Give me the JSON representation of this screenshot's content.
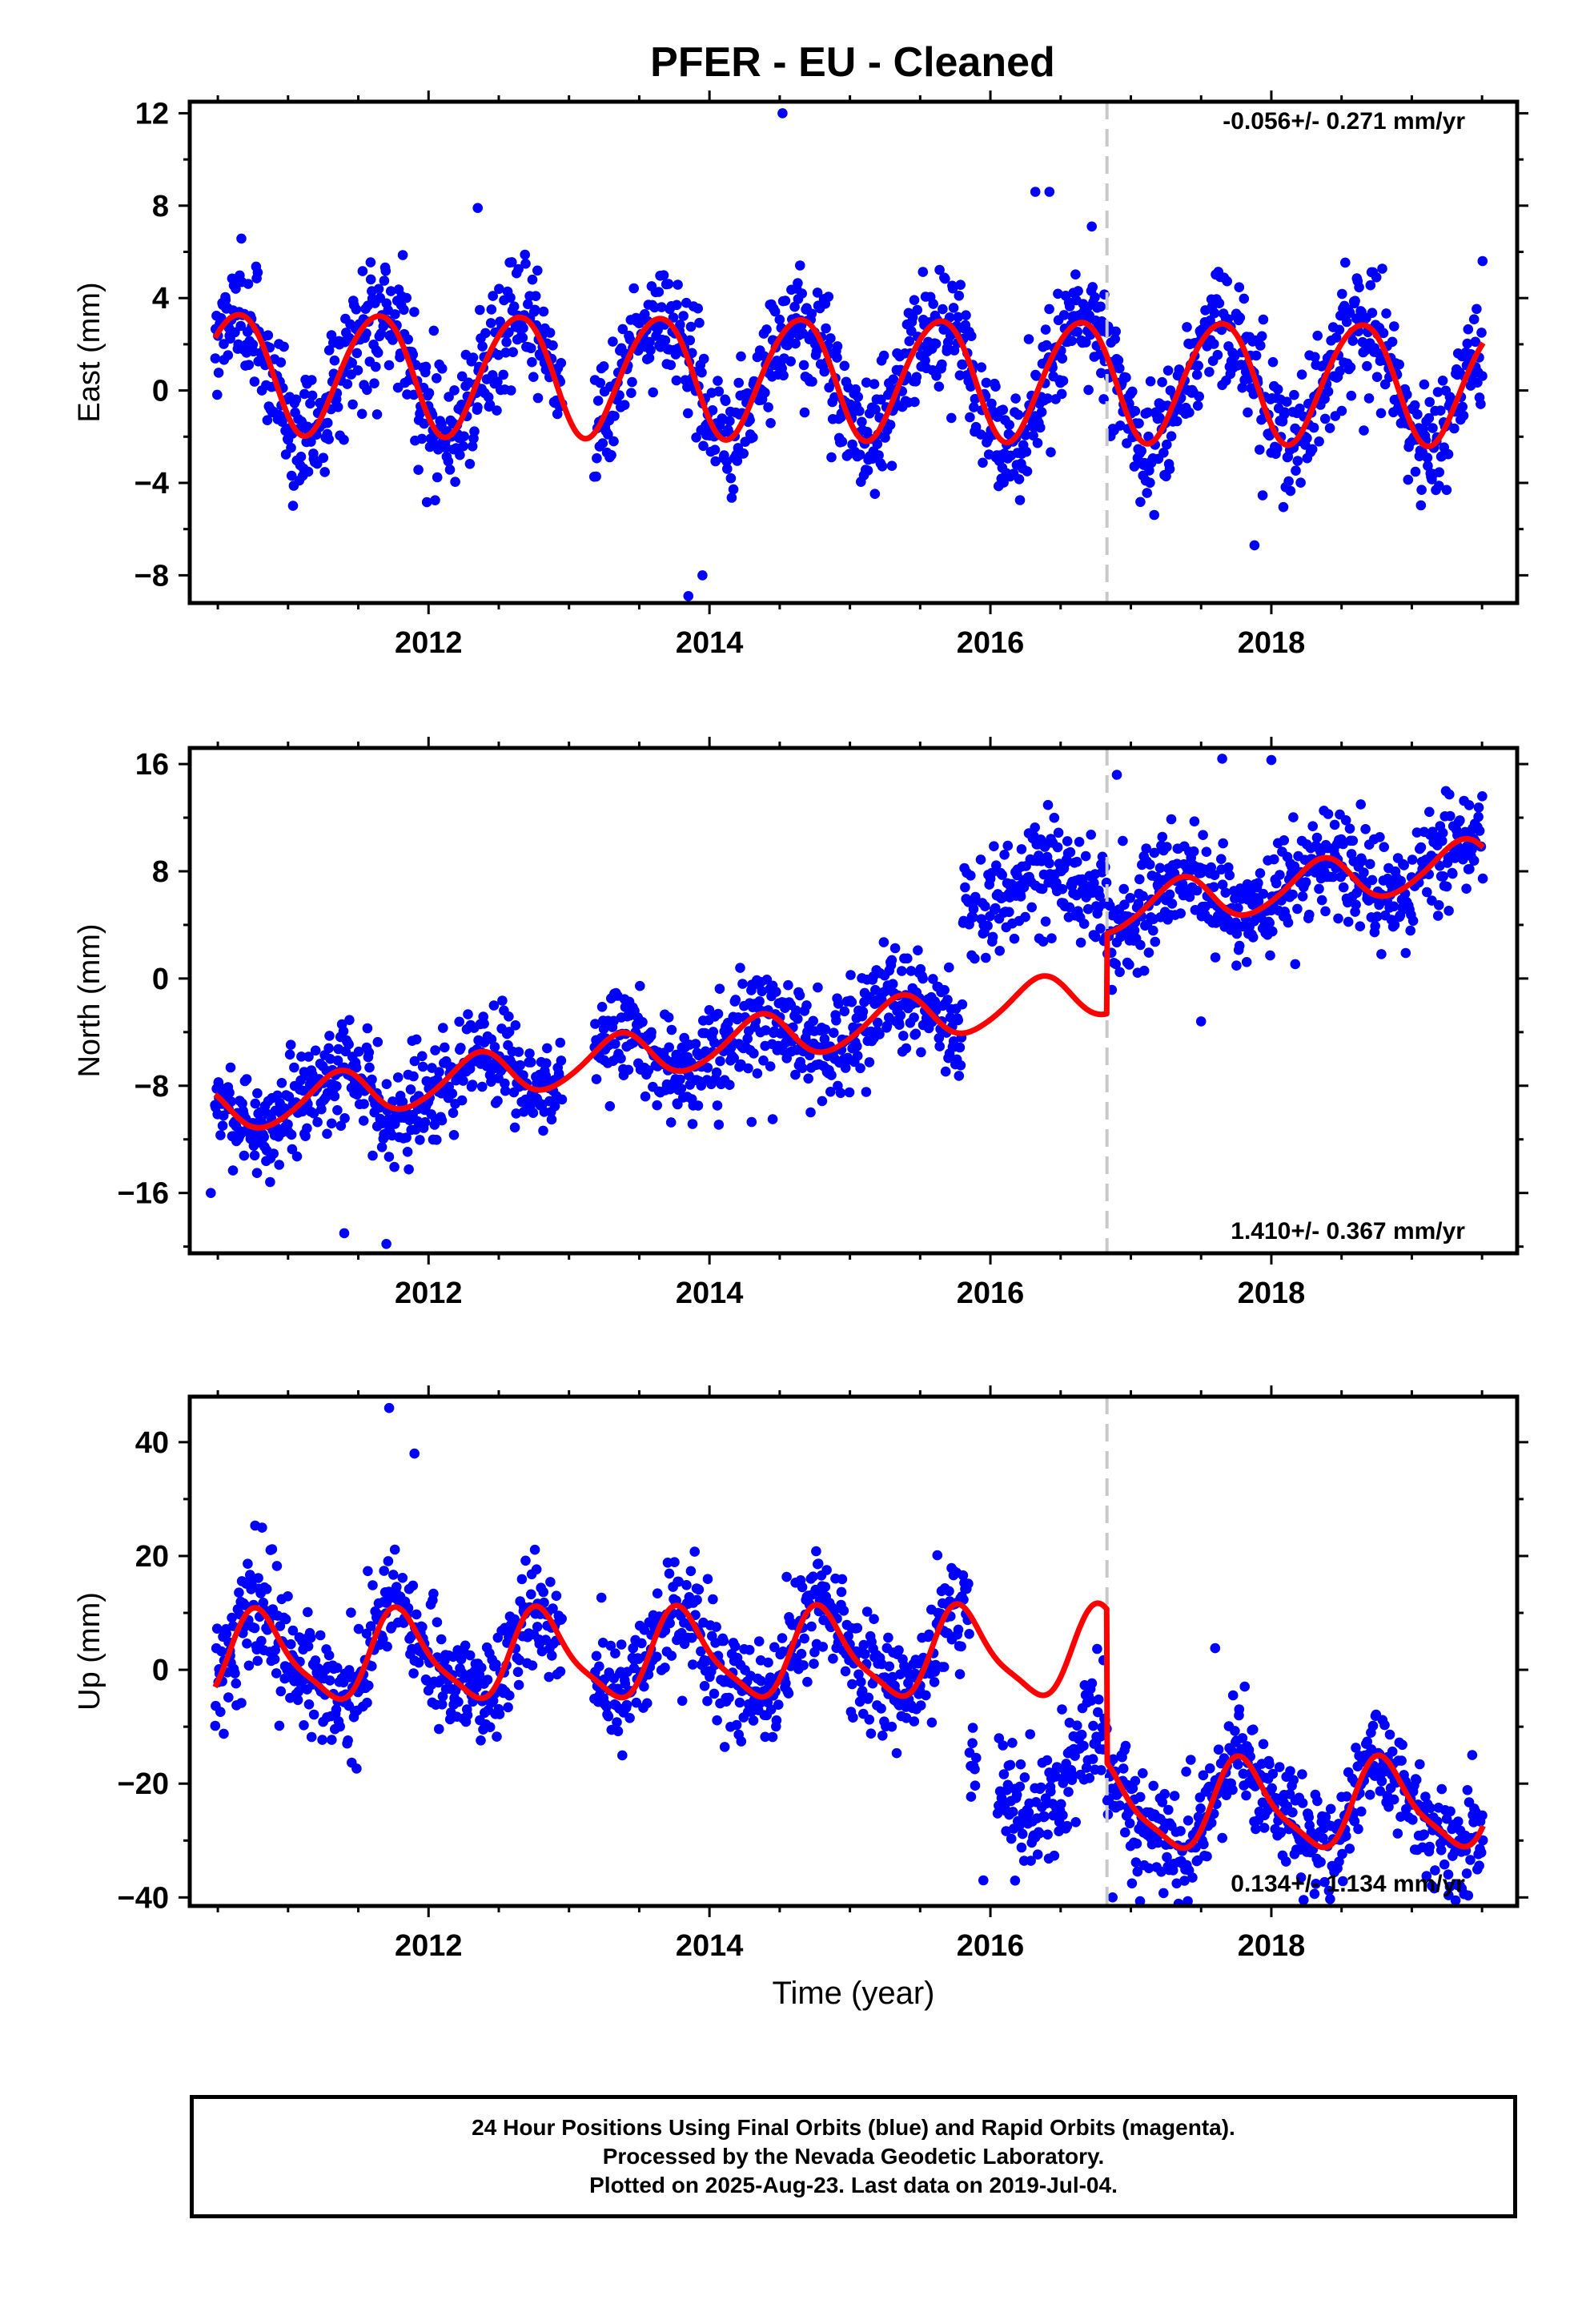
{
  "title": "PFER  - EU - Cleaned",
  "colors": {
    "data": "#0000ff",
    "model": "#ff0000",
    "break": "#c8c8c8",
    "axis": "#000000"
  },
  "chart_data": [
    {
      "type": "scatter",
      "name": "east",
      "ylabel": "East (mm)",
      "xlabel": "",
      "xlim": [
        2010.3,
        2019.75
      ],
      "ylim": [
        -9.2,
        12.5
      ],
      "yticks": [
        -8,
        -4,
        0,
        4,
        8,
        12
      ],
      "yticklabels": [
        "−8",
        "−4",
        "0",
        "4",
        "8",
        "12"
      ],
      "xticks": [
        2012,
        2014,
        2016,
        2018
      ],
      "xticklabels": [
        "2012",
        "2014",
        "2016",
        "2018"
      ],
      "rate": "-0.056+/- 0.271 mm/yr",
      "rate_position": "top-right",
      "break_x": 2016.83,
      "model": {
        "offset": 0.6,
        "trend": -0.056,
        "amp1": 2.6,
        "phase1": 0.38,
        "amp2": 0.2,
        "phase2": 0.2,
        "step": 0
      },
      "noise_sd": 1.35,
      "outliers": [
        [
          2014.52,
          12.0
        ],
        [
          2013.85,
          -8.9
        ],
        [
          2016.32,
          8.6
        ],
        [
          2012.35,
          7.9
        ],
        [
          2016.42,
          8.6
        ],
        [
          2017.88,
          -6.7
        ],
        [
          2013.95,
          -8.0
        ]
      ]
    },
    {
      "type": "scatter",
      "name": "north",
      "ylabel": "North (mm)",
      "xlabel": "",
      "xlim": [
        2010.3,
        2019.75
      ],
      "ylim": [
        -20.5,
        17.2
      ],
      "yticks": [
        -16,
        -8,
        0,
        8,
        16
      ],
      "yticklabels": [
        "−16",
        "−8",
        "0",
        "8",
        "16"
      ],
      "xticks": [
        2012,
        2014,
        2016,
        2018
      ],
      "xticklabels": [
        "2012",
        "2014",
        "2016",
        "2018"
      ],
      "rate": "1.410+/- 0.367 mm/yr",
      "rate_position": "bottom-right",
      "break_x": 2016.83,
      "model": {
        "offset": -4.3,
        "trend": 1.41,
        "amp1": 1.7,
        "phase1": 0.1,
        "amp2": 0.2,
        "phase2": 0.3,
        "step": 6.0
      },
      "data_step": {
        "x": 2015.8,
        "value": 6.5
      },
      "noise_sd": 1.9,
      "outliers": [
        [
          2010.45,
          -16.0
        ],
        [
          2011.4,
          -19.0
        ],
        [
          2011.7,
          -19.8
        ],
        [
          2017.65,
          16.4
        ],
        [
          2018.0,
          16.3
        ],
        [
          2016.9,
          15.2
        ],
        [
          2017.5,
          -3.2
        ],
        [
          2014.3,
          -10.7
        ],
        [
          2014.45,
          -10.5
        ]
      ]
    },
    {
      "type": "scatter",
      "name": "up",
      "ylabel": "Up (mm)",
      "xlabel": "Time (year)",
      "xlim": [
        2010.3,
        2019.75
      ],
      "ylim": [
        -41.5,
        48
      ],
      "yticks": [
        -40,
        -20,
        0,
        20,
        40
      ],
      "yticklabels": [
        "−40",
        "−20",
        "0",
        "20",
        "40"
      ],
      "xticks": [
        2012,
        2014,
        2016,
        2018
      ],
      "xticklabels": [
        "2012",
        "2014",
        "2016",
        "2018"
      ],
      "rate": "0.134+/- 1.134 mm/yr",
      "rate_position": "bottom-right",
      "break_x": 2016.83,
      "model": {
        "offset": 2.5,
        "trend": 0.134,
        "amp1": 7.5,
        "phase1": 0.55,
        "amp2": 1.8,
        "phase2": 0.1,
        "step": -27.0
      },
      "data_step": {
        "x": 2015.85,
        "value": -35.0
      },
      "noise_sd": 5.0,
      "outliers": [
        [
          2011.72,
          46.0
        ],
        [
          2011.9,
          38.0
        ],
        [
          2016.87,
          -40.0
        ],
        [
          2015.95,
          -37.0
        ],
        [
          2017.6,
          3.8
        ]
      ]
    }
  ],
  "footer": {
    "line1": "24 Hour Positions Using Final Orbits (blue) and Rapid Orbits (magenta).",
    "line2": "Processed by the Nevada Geodetic Laboratory.",
    "line3": "Plotted on 2025-Aug-23. Last data on 2019-Jul-04."
  }
}
